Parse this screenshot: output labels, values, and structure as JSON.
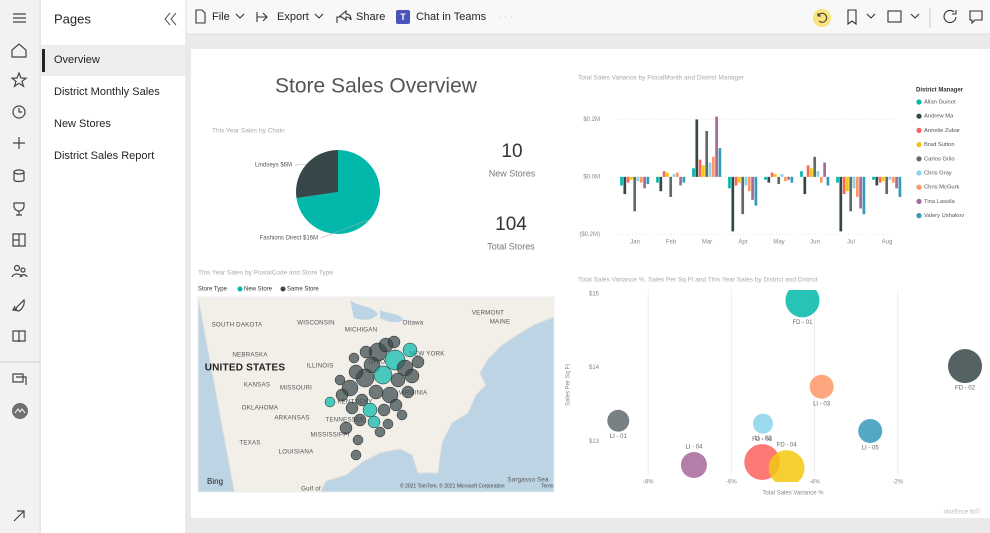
{
  "nav": {
    "pages_title": "Pages",
    "pages": [
      "Overview",
      "District Monthly Sales",
      "New Stores",
      "District Sales Report"
    ]
  },
  "toolbar": {
    "items": [
      "File",
      "Export",
      "Share",
      "Chat in Teams"
    ]
  },
  "report": {
    "title": "Store Sales Overview",
    "cards": [
      {
        "value": 10,
        "label": "New Stores"
      },
      {
        "value": 104,
        "label": "Total Stores"
      }
    ],
    "footer": "obviEnce llc©"
  },
  "map": {
    "title": "This Year Sales by PostalCode and Store Type",
    "legend_title": "Store Type",
    "legend": [
      {
        "name": "New Store",
        "color": "#01b8aa"
      },
      {
        "name": "Same Store",
        "color": "#374649"
      }
    ],
    "labels": [
      "SOUTH DAKOTA",
      "WISCONSIN",
      "MICHIGAN",
      "Ottawa",
      "VERMONT",
      "MAINE",
      "NEW YORK",
      "NEBRASKA",
      "ILLINOIS",
      "OHIO",
      "UNITED STATES",
      "KANSAS",
      "MISSOURI",
      "KENTUCKY",
      "VIRGINIA",
      "OKLAHOMA",
      "ARKANSAS",
      "TENNESSEE",
      "TEXAS",
      "MISSISSIPPI",
      "LOUISIANA",
      "Gulf of",
      "Sargasso Sea"
    ],
    "brand": "Bing",
    "attribution": "© 2021 TomTom, © 2021 Microsoft Corporation",
    "terms": "Terms"
  },
  "chart_data": [
    {
      "type": "pie",
      "title": "This Year Sales by Chain",
      "values": [
        16000000,
        6000000
      ],
      "value_labels": [
        "Fashions Direct $16M",
        "Lindseys $6M"
      ],
      "colors": [
        "#01b8aa",
        "#374649"
      ]
    },
    {
      "type": "bar",
      "title": "Total Sales Variance by FiscalMonth and District Manager",
      "legend_title": "District Manager",
      "categories": [
        "Jan",
        "Feb",
        "Mar",
        "Apr",
        "May",
        "Jun",
        "Jul",
        "Aug"
      ],
      "ylim": [
        -220000,
        240000
      ],
      "yticks": [
        {
          "value": -200000,
          "label": "($0.2M)"
        },
        {
          "value": 0,
          "label": "$0.0M"
        },
        {
          "value": 200000,
          "label": "$0.2M"
        }
      ],
      "grid": true,
      "legend": "right",
      "series": [
        {
          "name": "Allan Guinot",
          "color": "#01b8aa",
          "values": [
            -30000,
            -20000,
            30000,
            -40000,
            -10000,
            20000,
            -20000,
            -10000
          ]
        },
        {
          "name": "Andrew Ma",
          "color": "#374649",
          "values": [
            -60000,
            -50000,
            200000,
            -190000,
            -20000,
            -60000,
            -190000,
            -30000
          ]
        },
        {
          "name": "Annelie Zubar",
          "color": "#fd625e",
          "values": [
            -20000,
            20000,
            60000,
            -30000,
            15000,
            40000,
            -60000,
            -20000
          ]
        },
        {
          "name": "Brad Sutton",
          "color": "#f2c80f",
          "values": [
            -10000,
            15000,
            40000,
            -20000,
            10000,
            30000,
            -50000,
            -15000
          ]
        },
        {
          "name": "Carlos Grilo",
          "color": "#5f6b6d",
          "values": [
            -120000,
            -70000,
            160000,
            -130000,
            -25000,
            70000,
            -120000,
            -60000
          ]
        },
        {
          "name": "Chris Gray",
          "color": "#8ad4eb",
          "values": [
            -15000,
            10000,
            50000,
            -30000,
            10000,
            20000,
            -40000,
            -10000
          ]
        },
        {
          "name": "Chris McGurk",
          "color": "#fe9666",
          "values": [
            -20000,
            15000,
            70000,
            -50000,
            -15000,
            -20000,
            -70000,
            -20000
          ]
        },
        {
          "name": "Tina Lassila",
          "color": "#a66999",
          "values": [
            -40000,
            -30000,
            210000,
            -80000,
            -10000,
            50000,
            -110000,
            -40000
          ]
        },
        {
          "name": "Valery Ushakov",
          "color": "#3599b8",
          "values": [
            -25000,
            -20000,
            100000,
            -100000,
            -20000,
            -30000,
            -130000,
            -70000
          ]
        }
      ]
    },
    {
      "type": "scatter",
      "title": "Total Sales Variance %, Sales Per Sq Ft and This Year Sales by District and District",
      "x_label": "Total Sales Variance %",
      "y_label": "Sales Per Sq Ft",
      "xlim": [
        -9.4,
        0.1
      ],
      "ylim": [
        12.45,
        15.05
      ],
      "xticks": [
        {
          "value": -8,
          "label": "-8%"
        },
        {
          "value": -6,
          "label": "-6%"
        },
        {
          "value": -4,
          "label": "-4%"
        },
        {
          "value": -2,
          "label": "-2%"
        }
      ],
      "yticks": [
        {
          "value": 13,
          "label": "$13"
        },
        {
          "value": 14,
          "label": "$14"
        },
        {
          "value": 15,
          "label": "$15"
        }
      ],
      "labels": [
        "FD - 01",
        "FD - 02",
        "LI - 01",
        "LI - 02",
        "LI - 03",
        "LI - 05",
        "FD - 03",
        "FD - 04",
        "LI - 04"
      ],
      "x": [
        -4.29,
        -0.38,
        -8.72,
        -5.24,
        -3.83,
        -2.66,
        -5.26,
        -4.67,
        -6.9
      ],
      "y": [
        14.91,
        14.02,
        13.28,
        13.24,
        13.74,
        13.14,
        12.72,
        12.64,
        12.68
      ],
      "sizes": [
        2900000,
        2900000,
        1200000,
        1000000,
        1450000,
        1450000,
        3200000,
        3200000,
        1700000
      ],
      "colors": [
        "#01b8aa",
        "#374649",
        "#5f6b6d",
        "#8ad4eb",
        "#fe9666",
        "#3599b8",
        "#fd625e",
        "#f2c80f",
        "#a66999"
      ],
      "grid": true
    }
  ]
}
